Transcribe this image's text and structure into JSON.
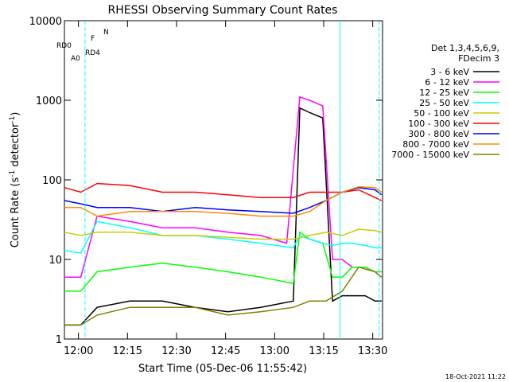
{
  "chart_data": {
    "type": "line",
    "title": "RHESSI Observing Summary Count Rates",
    "xlabel": "Start Time (05-Dec-06 11:55:42)",
    "ylabel_main": "Count Rate (s",
    "ylabel_sup1": "-1",
    "ylabel_mid": " detector",
    "ylabel_sup2": "-1",
    "ylabel_end": ")",
    "y_scale": "log",
    "xlim": [
      "11:55:42",
      "13:33:00"
    ],
    "ylim": [
      1,
      10000
    ],
    "x_ticks": [
      "12:00",
      "12:15",
      "12:30",
      "12:45",
      "13:00",
      "13:15",
      "13:30"
    ],
    "y_ticks": [
      "1",
      "10",
      "100",
      "1000",
      "10000"
    ],
    "footer_timestamp": "18-Oct-2021 11:22",
    "legend": {
      "header1": "Det 1,3,4,5,6,9,",
      "header2": "FDecim 3",
      "entries": [
        {
          "label": "3 - 6 keV",
          "color": "#000000"
        },
        {
          "label": "6 - 12 keV",
          "color": "#ff00ff"
        },
        {
          "label": "12 - 25 keV",
          "color": "#00ff00"
        },
        {
          "label": "25 - 50 keV",
          "color": "#00ffff"
        },
        {
          "label": "50 - 100 keV",
          "color": "#cccc00"
        },
        {
          "label": "100 - 300 keV",
          "color": "#ff0000"
        },
        {
          "label": "300 - 800 keV",
          "color": "#0000ff"
        },
        {
          "label": "800 - 7000 keV",
          "color": "#ff8c00"
        },
        {
          "label": "7000 - 15000 keV",
          "color": "#808000"
        }
      ]
    },
    "flag_labels": {
      "night": "N",
      "flare": "F",
      "rd0": "RD0",
      "rd4": "RD4",
      "attenuator": "A0"
    },
    "flag_colors": {
      "night": "#00ffff",
      "flare": "#ff0000",
      "rd0": "#008000",
      "rd4": "#008000",
      "attenuator": "#ff00ff"
    },
    "night_bounds_minutes": [
      6.3,
      84.3,
      96.3
    ],
    "series": [
      {
        "name": "3 - 6 keV",
        "color": "#000000",
        "x": [
          0,
          5,
          10,
          20,
          30,
          40,
          50,
          60,
          70,
          72,
          75,
          79,
          82,
          85,
          88,
          92,
          95,
          97
        ],
        "y": [
          1.5,
          1.5,
          2.5,
          3.0,
          3.0,
          2.5,
          2.2,
          2.5,
          3.0,
          800,
          700,
          600,
          3.0,
          3.5,
          3.5,
          3.5,
          3.0,
          3.0
        ]
      },
      {
        "name": "6 - 12 keV",
        "color": "#ff00ff",
        "x": [
          0,
          5,
          10,
          20,
          30,
          40,
          50,
          60,
          68,
          72,
          75,
          79,
          82,
          85,
          88,
          92,
          95,
          97
        ],
        "y": [
          6,
          6,
          35,
          30,
          25,
          25,
          22,
          20,
          16,
          1100,
          1000,
          850,
          10,
          10,
          8,
          8,
          7,
          6
        ]
      },
      {
        "name": "12 - 25 keV",
        "color": "#00ff00",
        "x": [
          0,
          5,
          10,
          20,
          30,
          40,
          50,
          60,
          70,
          72,
          75,
          79,
          82,
          85,
          88,
          92,
          95,
          97
        ],
        "y": [
          4,
          4,
          7,
          8,
          9,
          8,
          7,
          6,
          5,
          22,
          18,
          16,
          6,
          6,
          8,
          8,
          7,
          7
        ]
      },
      {
        "name": "25 - 50 keV",
        "color": "#00ffff",
        "x": [
          0,
          5,
          10,
          20,
          30,
          40,
          50,
          60,
          70,
          72,
          75,
          79,
          82,
          85,
          88,
          92,
          95,
          97
        ],
        "y": [
          13,
          12,
          30,
          25,
          20,
          20,
          18,
          16,
          14,
          20,
          18,
          16,
          15,
          16,
          16,
          15,
          14,
          14
        ]
      },
      {
        "name": "50 - 100 keV",
        "color": "#cccc00",
        "x": [
          0,
          5,
          10,
          20,
          30,
          40,
          50,
          60,
          70,
          75,
          80,
          85,
          90,
          95,
          97
        ],
        "y": [
          22,
          20,
          22,
          22,
          20,
          20,
          19,
          18,
          18,
          20,
          22,
          20,
          24,
          23,
          22
        ]
      },
      {
        "name": "100 - 300 keV",
        "color": "#ff0000",
        "x": [
          0,
          5,
          10,
          20,
          30,
          40,
          50,
          60,
          70,
          75,
          80,
          85,
          90,
          95,
          97
        ],
        "y": [
          80,
          70,
          90,
          85,
          70,
          70,
          65,
          60,
          60,
          70,
          70,
          70,
          75,
          60,
          55
        ]
      },
      {
        "name": "300 - 800 keV",
        "color": "#0000ff",
        "x": [
          0,
          5,
          10,
          20,
          30,
          40,
          50,
          60,
          70,
          75,
          80,
          85,
          90,
          95,
          97
        ],
        "y": [
          55,
          50,
          45,
          45,
          40,
          45,
          42,
          40,
          38,
          45,
          55,
          70,
          80,
          75,
          65
        ]
      },
      {
        "name": "800 - 7000 keV",
        "color": "#ff8c00",
        "x": [
          0,
          5,
          10,
          20,
          30,
          40,
          50,
          60,
          70,
          75,
          80,
          85,
          90,
          95,
          97
        ],
        "y": [
          45,
          45,
          35,
          40,
          40,
          40,
          38,
          35,
          35,
          40,
          55,
          70,
          82,
          80,
          70
        ]
      },
      {
        "name": "7000 - 15000 keV",
        "color": "#808000",
        "x": [
          0,
          5,
          10,
          20,
          30,
          40,
          50,
          60,
          70,
          75,
          80,
          85,
          90,
          95,
          97
        ],
        "y": [
          1.5,
          1.5,
          2.0,
          2.5,
          2.5,
          2.5,
          2.0,
          2.2,
          2.5,
          3.0,
          3.0,
          4.0,
          8.0,
          7.0,
          6.0
        ]
      }
    ]
  }
}
